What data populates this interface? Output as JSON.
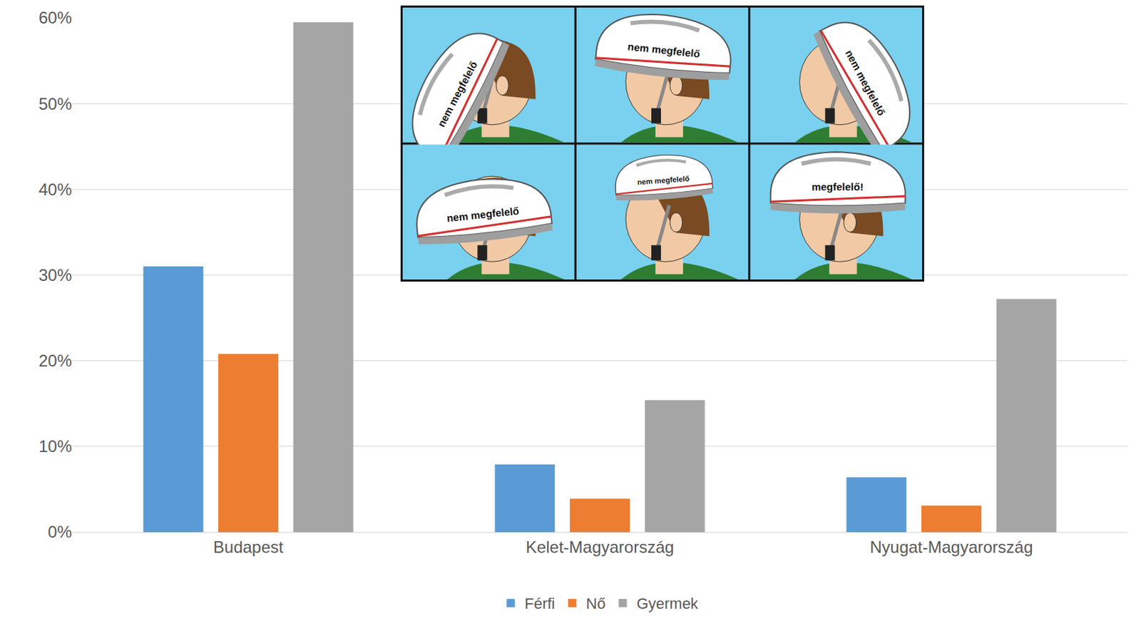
{
  "chart_data": {
    "type": "bar",
    "categories": [
      "Budapest",
      "Kelet-Magyarország",
      "Nyugat-Magyarország"
    ],
    "series": [
      {
        "name": "Férfi",
        "color": "#5b9bd5",
        "values": [
          31,
          7.9,
          6.4
        ]
      },
      {
        "name": "Nő",
        "color": "#ed7d31",
        "values": [
          20.8,
          3.9,
          3.1
        ]
      },
      {
        "name": "Gyermek",
        "color": "#a5a5a5",
        "values": [
          59.5,
          15.4,
          27.2
        ]
      }
    ],
    "ylim": [
      0,
      60
    ],
    "yticks": [
      {
        "value": 0,
        "label": "0%"
      },
      {
        "value": 10,
        "label": "10%"
      },
      {
        "value": 20,
        "label": "20%"
      },
      {
        "value": 30,
        "label": "30%"
      },
      {
        "value": 40,
        "label": "40%"
      },
      {
        "value": 50,
        "label": "50%"
      },
      {
        "value": 60,
        "label": "60%"
      }
    ],
    "grid": true,
    "legend": "bottom"
  },
  "inset": {
    "labels": [
      "nem megfelelő",
      "nem megfelelő",
      "nem megfelelő",
      "nem megfelelő",
      "nem megfelelő",
      "megfelelő!"
    ]
  }
}
